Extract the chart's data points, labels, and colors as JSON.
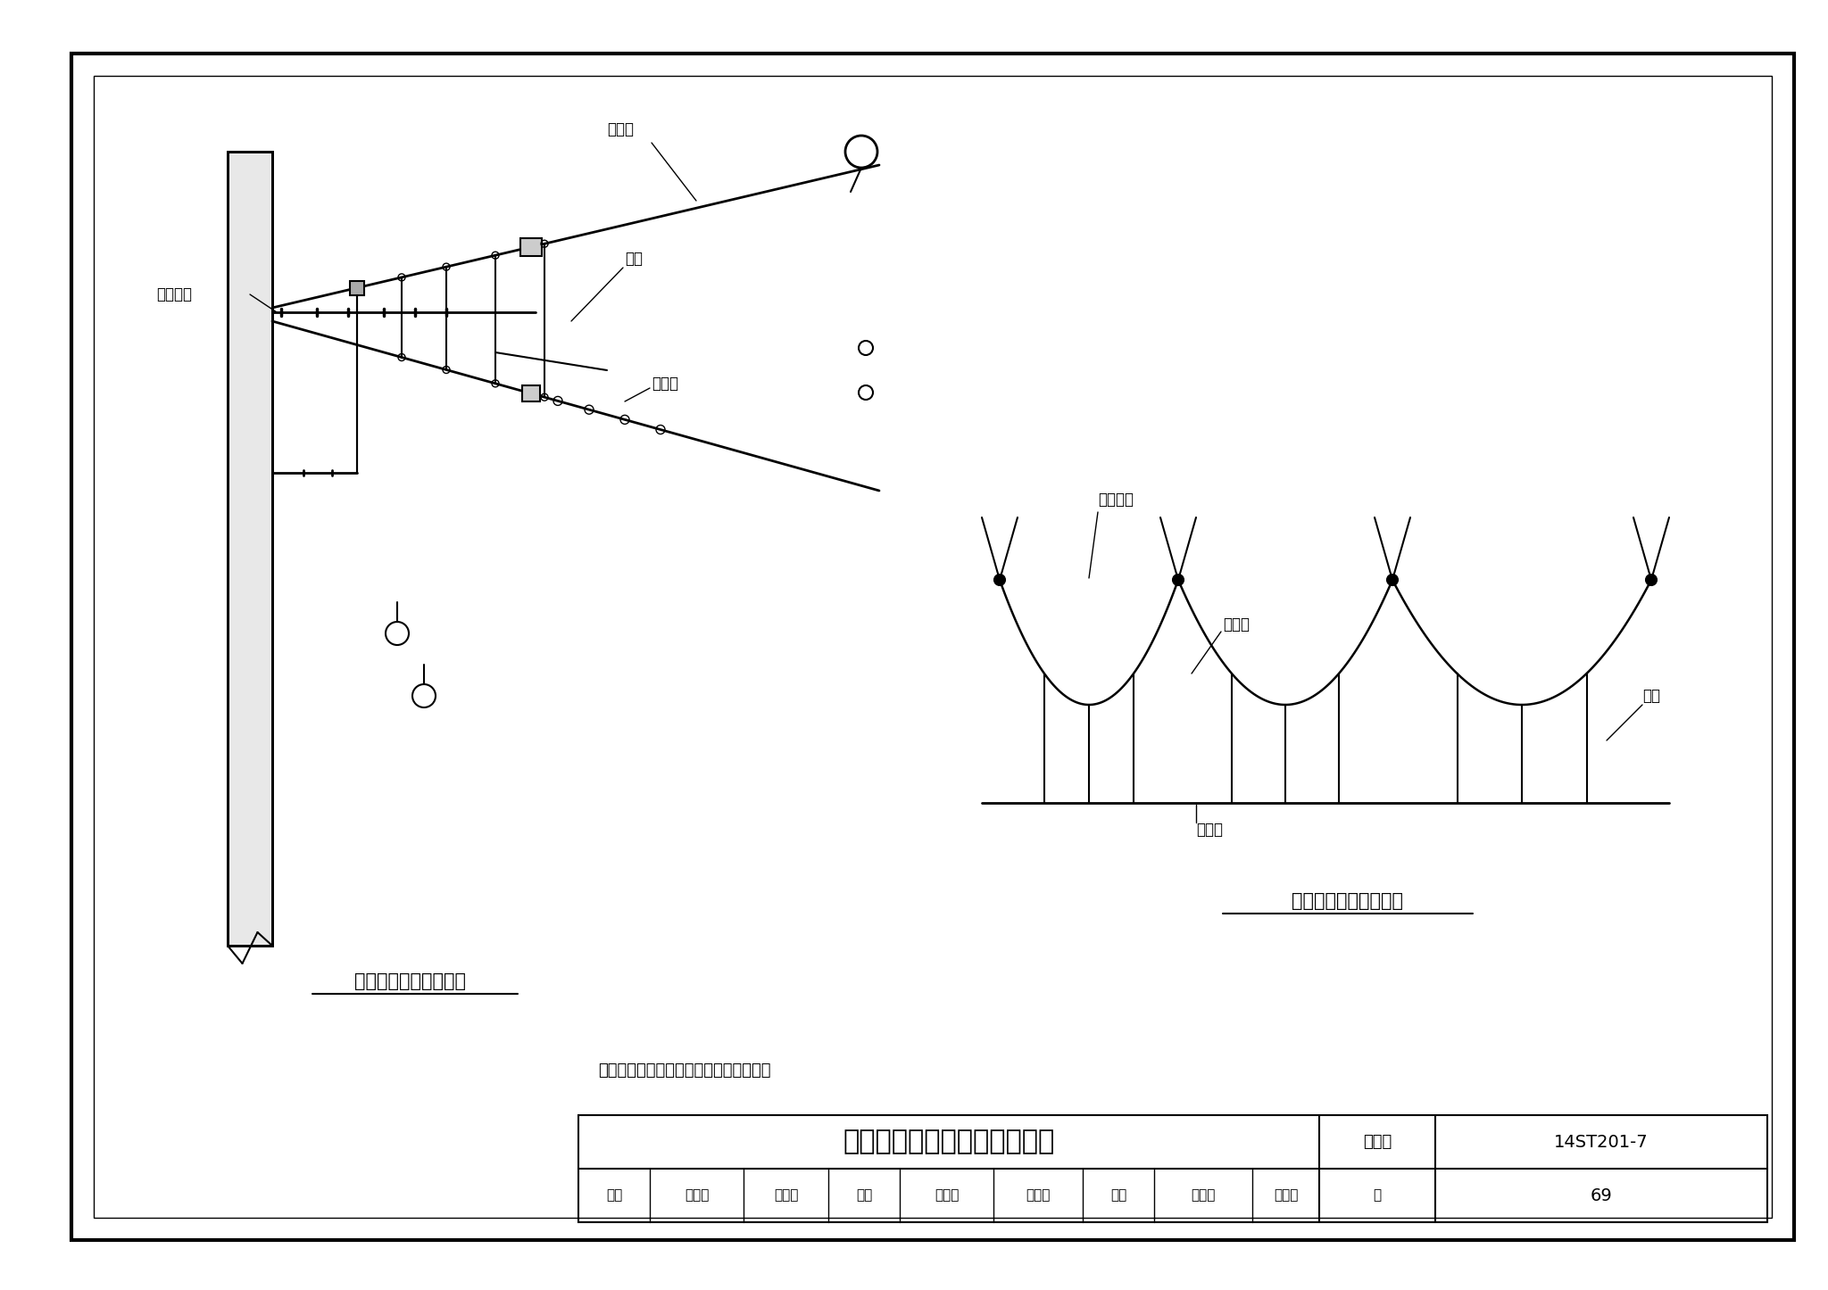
{
  "bg_color": "#ffffff",
  "title": "柔性悬挂简单链型悬挂安装图",
  "atlas_no_label": "图集号",
  "atlas_no": "14ST201-7",
  "page_label": "页",
  "page_no": "69",
  "left_diagram_title": "简单链型悬挂侧立面图",
  "right_diagram_title": "简单链型悬挂正立面图",
  "note": "注：简单链型悬挂跨距应符合设计要求。",
  "label_chengli_suo": "承力索",
  "label_dingwei": "定位装置",
  "label_diaoxi": "吊弦",
  "label_jiechu_xian": "接触线",
  "label_chengli_suo2": "承力索",
  "label_dingwei2": "定位装置",
  "label_diaoxi2": "吊弦",
  "label_jiechu_xian2": "接触线",
  "tb_review": "审核",
  "tb_review_name1": "葛义飞",
  "tb_review_name2": "高玉石",
  "tb_check": "校对",
  "tb_check_name": "蔡志刚",
  "tb_check_name2": "蔡志刚",
  "tb_design": "设计",
  "tb_design_name1": "张凌元",
  "tb_design_name2": "张达之"
}
